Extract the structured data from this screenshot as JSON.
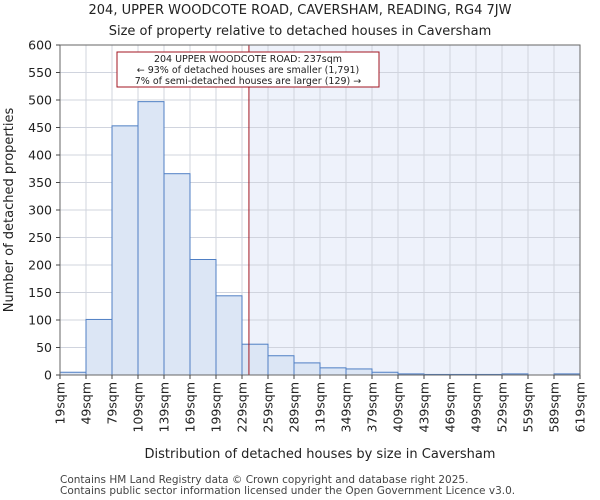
{
  "chart_data": {
    "type": "histogram",
    "title": "204, UPPER WOODCOTE ROAD, CAVERSHAM, READING, RG4 7JW",
    "subtitle": "Size of property relative to detached houses in Caversham",
    "xlabel": "Distribution of detached houses by size in Caversham",
    "ylabel": "Number of detached properties",
    "ylim": [
      0,
      600
    ],
    "y_ticks": [
      0,
      50,
      100,
      150,
      200,
      250,
      300,
      350,
      400,
      450,
      500,
      550,
      600
    ],
    "bin_start": 19,
    "bin_width": 30,
    "x_range": [
      19,
      619
    ],
    "categories": [
      "19sqm",
      "49sqm",
      "79sqm",
      "109sqm",
      "139sqm",
      "169sqm",
      "199sqm",
      "229sqm",
      "259sqm",
      "289sqm",
      "319sqm",
      "349sqm",
      "379sqm",
      "409sqm",
      "439sqm",
      "469sqm",
      "499sqm",
      "529sqm",
      "559sqm",
      "589sqm",
      "619sqm"
    ],
    "values": [
      5,
      101,
      453,
      497,
      366,
      210,
      144,
      56,
      35,
      22,
      13,
      11,
      5,
      2,
      1,
      1,
      1,
      2,
      0,
      2
    ],
    "property_line": 237,
    "annotation": {
      "line1": "204 UPPER WOODCOTE ROAD: 237sqm",
      "line2": "← 93% of detached houses are smaller (1,791)",
      "line3": "7% of semi-detached houses are larger (129) →"
    },
    "colors": {
      "bar_fill": "#dce6f5",
      "bar_stroke": "#4f7fc4",
      "marker": "#a31621",
      "highlight_bg": "#eef2fb",
      "grid": "#d0d4de"
    }
  },
  "footer": {
    "line1": "Contains HM Land Registry data © Crown copyright and database right 2025.",
    "line2": "Contains public sector information licensed under the Open Government Licence v3.0."
  }
}
